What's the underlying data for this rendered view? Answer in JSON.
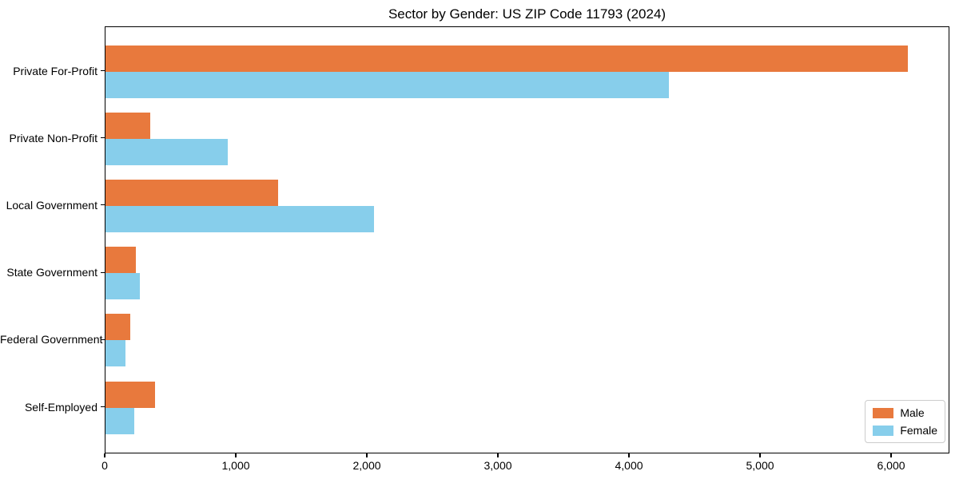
{
  "chart_data": {
    "type": "bar",
    "orientation": "horizontal",
    "title": "Sector by Gender: US ZIP Code 11793 (2024)",
    "categories": [
      "Private For-Profit",
      "Private Non-Profit",
      "Local Government",
      "State Government",
      "Federal Government",
      "Self-Employed"
    ],
    "series": [
      {
        "name": "Male",
        "color": "#e8793d",
        "values": [
          6120,
          340,
          1320,
          230,
          190,
          380
        ]
      },
      {
        "name": "Female",
        "color": "#87ceeb",
        "values": [
          4300,
          930,
          2050,
          260,
          150,
          220
        ]
      }
    ],
    "xlabel": "",
    "ylabel": "",
    "xlim": [
      0,
      6445
    ],
    "xticks": [
      0,
      1000,
      2000,
      3000,
      4000,
      5000,
      6000
    ],
    "xtick_labels": [
      "0",
      "1,000",
      "2,000",
      "3,000",
      "4,000",
      "5,000",
      "6,000"
    ],
    "grid": false,
    "legend_position": "lower right"
  }
}
